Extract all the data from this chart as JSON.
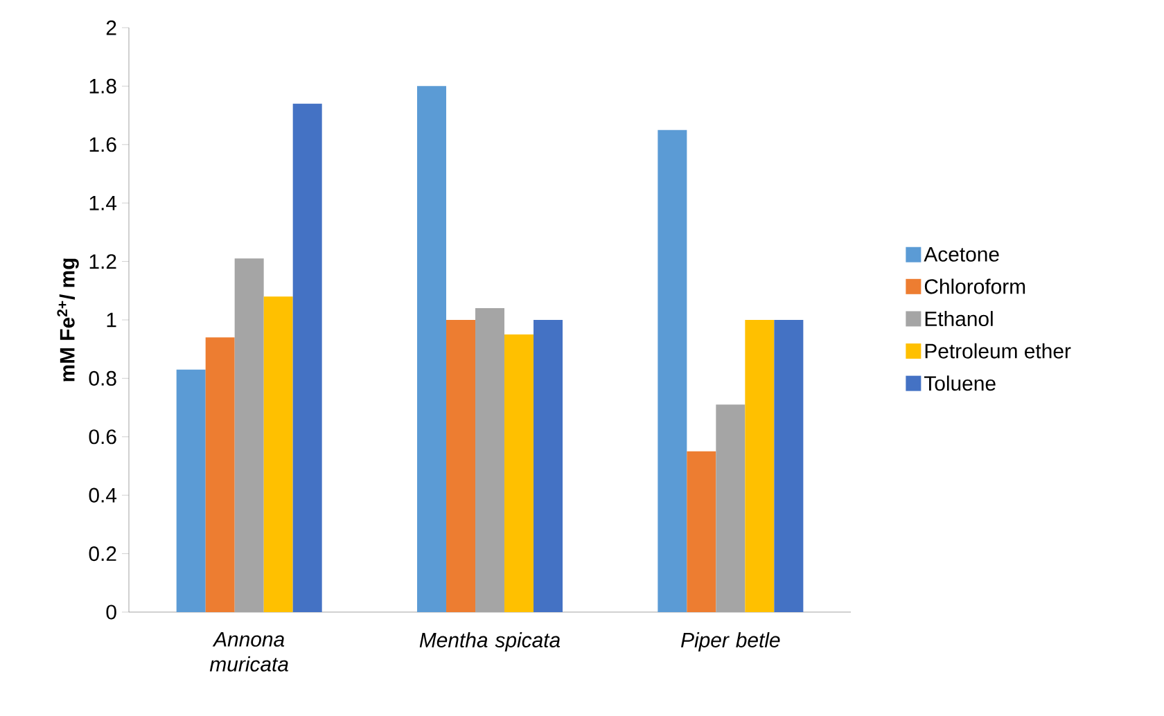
{
  "chart_data": {
    "type": "bar",
    "ylabel": "mM Fe$^{2+}$/ mg",
    "categories": [
      "Annona muricata",
      "Mentha spicata",
      "Piper betle"
    ],
    "series": [
      {
        "name": "Acetone",
        "color": "#5b9bd5",
        "values": [
          0.83,
          1.8,
          1.65
        ]
      },
      {
        "name": "Chloroform",
        "color": "#ed7d31",
        "values": [
          0.94,
          1.0,
          0.55
        ]
      },
      {
        "name": "Ethanol",
        "color": "#a5a5a5",
        "values": [
          1.21,
          1.04,
          0.71
        ]
      },
      {
        "name": "Petroleum ether",
        "color": "#ffc000",
        "values": [
          1.08,
          0.95,
          1.0
        ]
      },
      {
        "name": "Toluene",
        "color": "#4472c4",
        "values": [
          1.74,
          1.0,
          1.0
        ]
      }
    ],
    "ylim": [
      0,
      2
    ],
    "yticks": [
      0,
      0.2,
      0.4,
      0.6,
      0.8,
      1,
      1.2,
      1.4,
      1.6,
      1.8,
      2
    ],
    "grid": false,
    "legend": "right"
  }
}
